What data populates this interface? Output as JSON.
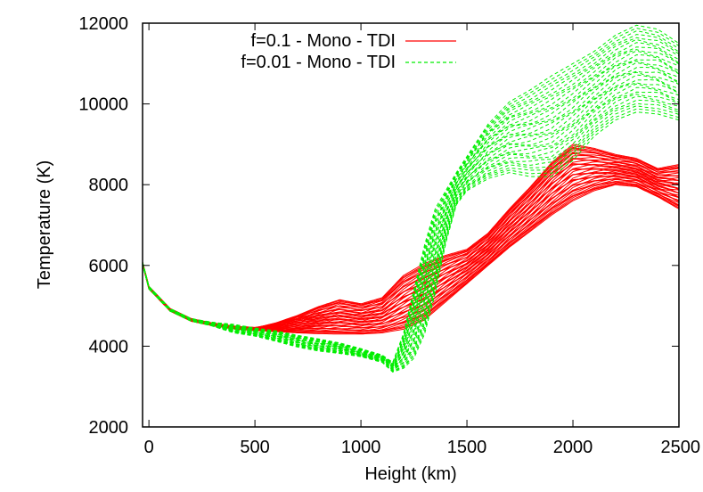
{
  "chart_data": {
    "type": "line",
    "xlabel": "Height (km)",
    "ylabel": "Temperature (K)",
    "xlim": [
      -30,
      2500
    ],
    "ylim": [
      2000,
      12000
    ],
    "xticks": [
      0,
      500,
      1000,
      1500,
      2000,
      2500
    ],
    "yticks": [
      2000,
      4000,
      6000,
      8000,
      10000,
      12000
    ],
    "xtick_labels": [
      "0",
      "500",
      "1000",
      "1500",
      "2000",
      "2500"
    ],
    "ytick_labels": [
      "2000",
      "4000",
      "6000",
      "8000",
      "10000",
      "12000"
    ],
    "grid": false,
    "legend_position": "top-left",
    "series": [
      {
        "name": "f=0.1 - Mono - TDI",
        "color": "#ff0000",
        "dash": "solid",
        "curve_count": 40,
        "lower_envelope": [
          [
            -30,
            6050
          ],
          [
            0,
            5450
          ],
          [
            100,
            4900
          ],
          [
            200,
            4650
          ],
          [
            300,
            4540
          ],
          [
            400,
            4460
          ],
          [
            500,
            4400
          ],
          [
            600,
            4360
          ],
          [
            700,
            4330
          ],
          [
            800,
            4310
          ],
          [
            900,
            4300
          ],
          [
            1000,
            4300
          ],
          [
            1100,
            4330
          ],
          [
            1200,
            4420
          ],
          [
            1300,
            4650
          ],
          [
            1400,
            5100
          ],
          [
            1500,
            5550
          ],
          [
            1600,
            6000
          ],
          [
            1700,
            6450
          ],
          [
            1800,
            6850
          ],
          [
            1900,
            7250
          ],
          [
            2000,
            7600
          ],
          [
            2100,
            7850
          ],
          [
            2200,
            8000
          ],
          [
            2300,
            7950
          ],
          [
            2400,
            7700
          ],
          [
            2500,
            7400
          ]
        ],
        "upper_envelope": [
          [
            -30,
            6050
          ],
          [
            0,
            5450
          ],
          [
            100,
            4900
          ],
          [
            200,
            4650
          ],
          [
            300,
            4540
          ],
          [
            400,
            4470
          ],
          [
            500,
            4450
          ],
          [
            600,
            4580
          ],
          [
            700,
            4760
          ],
          [
            800,
            4980
          ],
          [
            900,
            5150
          ],
          [
            1000,
            5050
          ],
          [
            1100,
            5200
          ],
          [
            1200,
            5750
          ],
          [
            1300,
            6050
          ],
          [
            1400,
            6250
          ],
          [
            1500,
            6400
          ],
          [
            1600,
            6800
          ],
          [
            1700,
            7400
          ],
          [
            1800,
            7950
          ],
          [
            1900,
            8550
          ],
          [
            2000,
            9000
          ],
          [
            2100,
            8900
          ],
          [
            2200,
            8750
          ],
          [
            2300,
            8650
          ],
          [
            2400,
            8400
          ],
          [
            2500,
            8500
          ]
        ]
      },
      {
        "name": "f=0.01 - Mono - TDI",
        "color": "#00ee00",
        "dash": "dashed",
        "curve_count": 30,
        "lower_envelope": [
          [
            -30,
            6050
          ],
          [
            0,
            5450
          ],
          [
            100,
            4900
          ],
          [
            200,
            4640
          ],
          [
            300,
            4500
          ],
          [
            400,
            4330
          ],
          [
            500,
            4250
          ],
          [
            600,
            4120
          ],
          [
            700,
            3980
          ],
          [
            800,
            3880
          ],
          [
            900,
            3820
          ],
          [
            1000,
            3740
          ],
          [
            1100,
            3600
          ],
          [
            1150,
            3360
          ],
          [
            1200,
            3450
          ],
          [
            1250,
            3700
          ],
          [
            1300,
            4300
          ],
          [
            1350,
            5300
          ],
          [
            1400,
            6550
          ],
          [
            1450,
            7500
          ],
          [
            1500,
            7850
          ],
          [
            1600,
            8150
          ],
          [
            1700,
            8300
          ],
          [
            1800,
            8200
          ],
          [
            1900,
            8200
          ],
          [
            2000,
            8600
          ],
          [
            2100,
            9200
          ],
          [
            2200,
            9600
          ],
          [
            2300,
            9800
          ],
          [
            2400,
            9750
          ],
          [
            2500,
            9600
          ]
        ],
        "upper_envelope": [
          [
            -30,
            6050
          ],
          [
            0,
            5450
          ],
          [
            100,
            4900
          ],
          [
            200,
            4660
          ],
          [
            300,
            4590
          ],
          [
            400,
            4540
          ],
          [
            500,
            4450
          ],
          [
            600,
            4380
          ],
          [
            700,
            4270
          ],
          [
            800,
            4180
          ],
          [
            900,
            4080
          ],
          [
            1000,
            3940
          ],
          [
            1100,
            3780
          ],
          [
            1150,
            3600
          ],
          [
            1200,
            4300
          ],
          [
            1250,
            5400
          ],
          [
            1300,
            6500
          ],
          [
            1350,
            7400
          ],
          [
            1400,
            7850
          ],
          [
            1450,
            8300
          ],
          [
            1500,
            8700
          ],
          [
            1600,
            9500
          ],
          [
            1700,
            10050
          ],
          [
            1800,
            10350
          ],
          [
            1900,
            10700
          ],
          [
            2000,
            11000
          ],
          [
            2100,
            11300
          ],
          [
            2200,
            11700
          ],
          [
            2300,
            11950
          ],
          [
            2400,
            11850
          ],
          [
            2500,
            11500
          ]
        ]
      }
    ]
  }
}
